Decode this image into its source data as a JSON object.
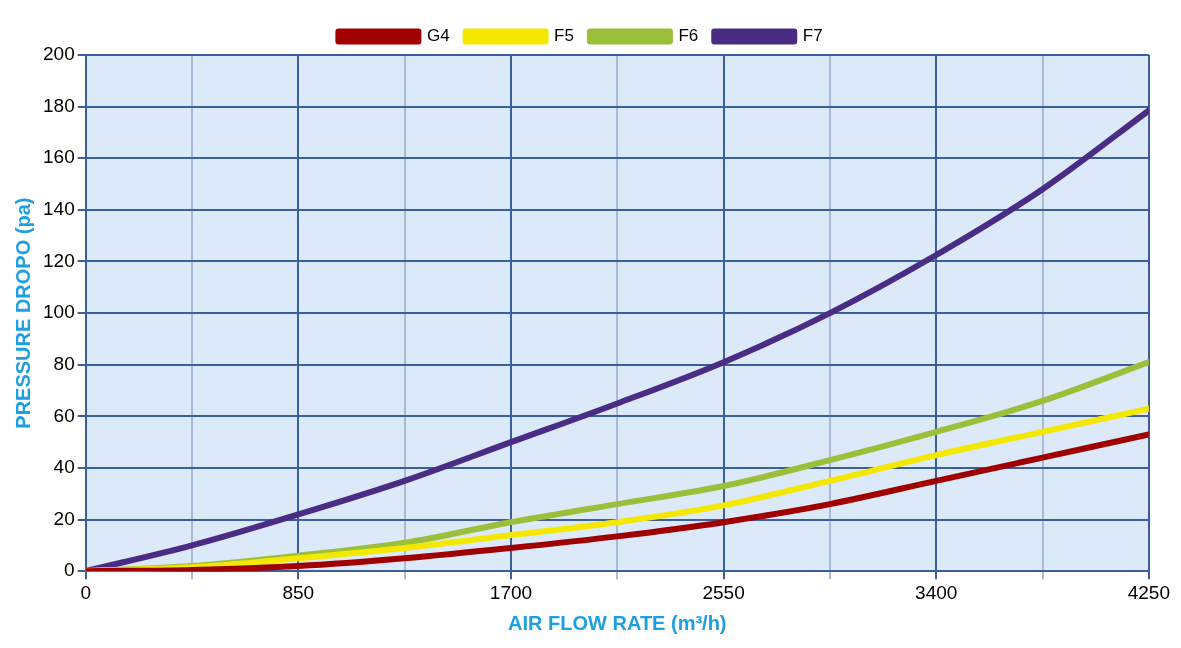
{
  "chart_data": {
    "type": "line",
    "xlabel": "AIR FLOW RATE (m³/h)",
    "ylabel": "PRESSURE DROPO (pa)",
    "x": [
      0,
      425,
      850,
      1275,
      1700,
      2125,
      2550,
      2975,
      3400,
      3825,
      4250
    ],
    "series": [
      {
        "name": "G4",
        "color": "#a00000",
        "values": [
          0,
          0.5,
          2,
          5,
          9,
          13.5,
          19,
          26,
          35,
          44,
          53
        ]
      },
      {
        "name": "F5",
        "color": "#f5e800",
        "values": [
          0,
          1.5,
          5,
          9,
          14,
          19,
          25.5,
          35,
          45,
          54,
          63
        ]
      },
      {
        "name": "F6",
        "color": "#9cbf3a",
        "values": [
          0,
          2,
          6,
          11,
          19,
          26,
          33,
          43,
          54,
          66,
          81
        ]
      },
      {
        "name": "F7",
        "color": "#4a2c85",
        "values": [
          0,
          10,
          22,
          35,
          50,
          65,
          81,
          100,
          122.5,
          148,
          178.5
        ]
      }
    ],
    "xlim": [
      0,
      4250
    ],
    "ylim": [
      0,
      200
    ],
    "xticks": [
      0,
      {
        "value": 425,
        "label": null
      },
      850,
      {
        "value": 1275,
        "label": null
      },
      1700,
      {
        "value": 2125,
        "label": null
      },
      2550,
      {
        "value": 2975,
        "label": null
      },
      3400,
      {
        "value": 3825,
        "label": null
      },
      4250
    ],
    "yticks": [
      0,
      20,
      40,
      60,
      80,
      100,
      120,
      140,
      160,
      180,
      200
    ],
    "grid": true,
    "legend": "top",
    "marker": "none",
    "line_style": "solid"
  }
}
